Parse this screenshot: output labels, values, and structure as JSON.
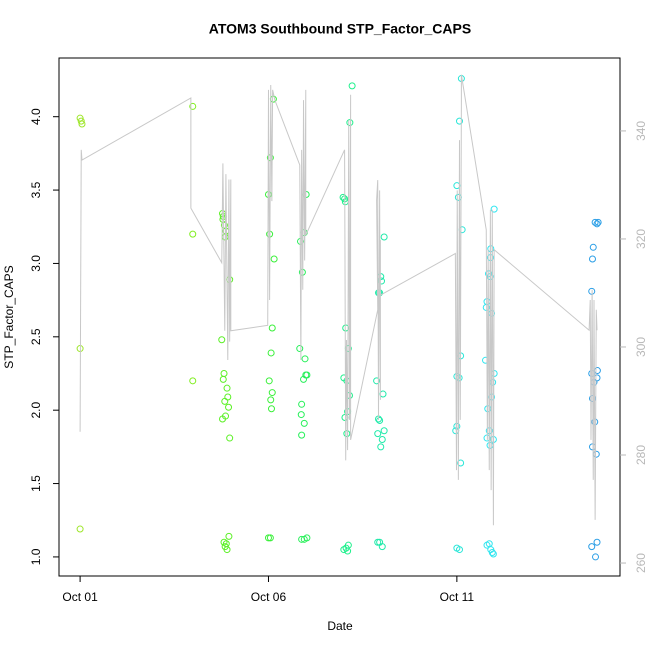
{
  "chart_data": {
    "type": "scatter",
    "title": "ATOM3 Southbound STP_Factor_CAPS",
    "x_label": "Date",
    "y_label": "STP_Factor_CAPS",
    "xlim": [
      -0.56,
      14.33
    ],
    "xticks": [
      {
        "value": 0,
        "label": "Oct 01"
      },
      {
        "value": 5,
        "label": "Oct 06"
      },
      {
        "value": 10,
        "label": "Oct 11"
      }
    ],
    "ylim": [
      0.87,
      4.4
    ],
    "yticks": [
      {
        "value": 1,
        "label": "1.0"
      },
      {
        "value": 1.5,
        "label": "1.5"
      },
      {
        "value": 2,
        "label": "2.0"
      },
      {
        "value": 2.5,
        "label": "2.5"
      },
      {
        "value": 3,
        "label": "3.0"
      },
      {
        "value": 3.5,
        "label": "3.5"
      },
      {
        "value": 4,
        "label": "4.0"
      }
    ],
    "y2lim": [
      257.6,
      353.5
    ],
    "y2ticks": [
      260,
      280,
      300,
      320,
      340
    ],
    "series": [
      {
        "color": "#9ee62a",
        "x": [
          0.0,
          0.03,
          0.05,
          0.0,
          0.0
        ],
        "values": [
          3.99,
          3.97,
          3.95,
          2.42,
          1.19
        ]
      },
      {
        "color": "#80ee20",
        "x": [
          2.99,
          2.99,
          2.99
        ],
        "values": [
          4.07,
          3.2,
          2.2
        ]
      },
      {
        "color": "#5cf026",
        "x": [
          3.78,
          3.8,
          3.79,
          3.83,
          3.87,
          3.85,
          3.97,
          3.76,
          3.82,
          3.8,
          3.9,
          3.92,
          3.84,
          3.94,
          3.86,
          3.78,
          3.97,
          3.95,
          3.82,
          3.88,
          3.85,
          3.9
        ],
        "values": [
          3.34,
          3.32,
          3.3,
          3.26,
          3.22,
          3.18,
          2.89,
          2.48,
          2.25,
          2.21,
          2.15,
          2.09,
          2.06,
          2.02,
          1.96,
          1.94,
          1.81,
          1.14,
          1.1,
          1.09,
          1.07,
          1.05
        ]
      },
      {
        "color": "#3af03a",
        "x": [
          5.13,
          5.05,
          5.0,
          5.03,
          5.15,
          5.1,
          5.07,
          5.02,
          5.1,
          5.06,
          5.08,
          5.0,
          5.05
        ],
        "values": [
          4.12,
          3.72,
          3.47,
          3.2,
          3.03,
          2.56,
          2.39,
          2.2,
          2.12,
          2.07,
          2.01,
          1.13,
          1.13
        ]
      },
      {
        "color": "#28f05a",
        "x": [
          6.0,
          5.95,
          5.85,
          5.9,
          5.83,
          5.97,
          6.02,
          5.99,
          5.93,
          5.88,
          5.87,
          5.95,
          5.88,
          5.88,
          5.95,
          6.02
        ],
        "values": [
          3.47,
          3.21,
          3.15,
          2.94,
          2.42,
          2.35,
          2.24,
          2.24,
          2.21,
          2.04,
          1.97,
          1.91,
          1.83,
          1.12,
          1.12,
          1.13
        ]
      },
      {
        "color": "#1ef08c",
        "x": [
          7.22,
          7.16,
          6.98,
          7.02,
          7.04,
          7.05,
          7.12,
          7.0,
          7.08,
          7.15,
          7.1,
          7.03,
          7.08,
          7.12,
          7.06,
          7.0,
          7.1
        ],
        "values": [
          4.21,
          3.96,
          3.45,
          3.44,
          3.42,
          2.56,
          2.42,
          2.22,
          2.2,
          2.1,
          1.99,
          1.95,
          1.84,
          1.08,
          1.06,
          1.05,
          1.04
        ]
      },
      {
        "color": "#20eaaa",
        "x": [
          8.07,
          7.98,
          8.0,
          7.92,
          7.95,
          7.87,
          8.04,
          7.92,
          7.95,
          8.07,
          7.9,
          8.02,
          7.98,
          7.9,
          7.95,
          8.02
        ],
        "values": [
          3.18,
          2.91,
          2.88,
          2.8,
          2.8,
          2.2,
          2.11,
          1.94,
          1.93,
          1.86,
          1.84,
          1.8,
          1.75,
          1.1,
          1.1,
          1.07
        ]
      },
      {
        "color": "#2ae6d8",
        "x": [
          10.12,
          10.07,
          10.0,
          10.04,
          10.14,
          10.1,
          10.0,
          10.06,
          10.0,
          9.97,
          10.1,
          10.0,
          10.07
        ],
        "values": [
          4.26,
          3.97,
          3.53,
          3.45,
          3.23,
          2.37,
          2.23,
          2.22,
          1.89,
          1.86,
          1.64,
          1.06,
          1.05
        ]
      },
      {
        "color": "#30e6f0",
        "x": [
          10.99,
          10.9,
          10.89,
          10.84,
          10.88,
          10.8,
          10.78,
          10.92,
          10.76,
          10.99,
          10.95,
          10.92,
          10.82,
          10.86,
          10.8,
          10.97,
          10.88,
          10.8,
          10.86,
          10.9,
          10.94,
          10.97
        ],
        "values": [
          3.37,
          3.1,
          3.04,
          2.93,
          2.91,
          2.74,
          2.7,
          2.66,
          2.34,
          2.25,
          2.19,
          2.09,
          2.01,
          1.86,
          1.81,
          1.8,
          1.76,
          1.08,
          1.09,
          1.05,
          1.03,
          1.02
        ]
      },
      {
        "color": "#2a9ee6",
        "x": [
          13.67,
          13.75,
          13.72,
          13.62,
          13.6,
          13.58,
          13.58,
          13.73,
          13.72,
          13.64,
          13.6,
          13.66,
          13.6,
          13.7,
          13.72,
          13.58,
          13.68
        ],
        "values": [
          3.28,
          3.28,
          3.27,
          3.11,
          3.03,
          2.81,
          2.25,
          2.27,
          2.22,
          2.19,
          2.08,
          1.92,
          1.75,
          1.7,
          1.1,
          1.07,
          1.0
        ]
      },
      {
        "type": "line",
        "axis": "y2",
        "color": "#c8c8c8",
        "x": [
          0,
          0.03,
          0.05,
          2.94,
          2.94,
          3.76,
          3.79,
          3.84,
          3.87,
          3.92,
          3.95,
          3.97,
          4.0,
          4.0,
          4.98,
          5.0,
          5.03,
          5.06,
          5.09,
          5.11,
          5.17,
          5.83,
          5.86,
          5.88,
          5.91,
          5.93,
          5.96,
          5.99,
          5.99,
          7.02,
          7.05,
          7.07,
          7.1,
          7.13,
          7.15,
          7.18,
          7.18,
          7.9,
          7.87,
          7.9,
          7.92,
          7.95,
          7.97,
          7.97,
          7.97,
          9.96,
          9.99,
          10.01,
          10.04,
          10.07,
          10.09,
          10.12,
          10.12,
          10.78,
          10.81,
          10.83,
          10.86,
          10.89,
          10.91,
          10.94,
          10.97,
          10.99,
          13.51,
          13.54,
          13.56,
          13.59,
          13.62,
          13.64,
          13.67,
          13.7,
          13.72
        ],
        "values": [
          284.3,
          336.5,
          334.6,
          346.1,
          325.7,
          315.6,
          334,
          303,
          332,
          297.6,
          331,
          301,
          331,
          303,
          304,
          347.6,
          308.7,
          348.5,
          327,
          347.6,
          345.7,
          333.7,
          297.6,
          336.5,
          310.6,
          345.7,
          316,
          347.6,
          320.7,
          336.5,
          279,
          301.3,
          280.9,
          342,
          286.5,
          346.7,
          282.8,
          306.9,
          327.2,
          330.9,
          286.5,
          329,
          290.2,
          319.8,
          309.6,
          317.3,
          277.2,
          329,
          275.4,
          338.3,
          286.5,
          345.7,
          350.4,
          321.7,
          282.8,
          318,
          277.2,
          325.4,
          273.5,
          325.4,
          267,
          318,
          303.1,
          308.7,
          282.8,
          310.6,
          275.4,
          308.7,
          268,
          306.9,
          303.1
        ]
      }
    ]
  }
}
